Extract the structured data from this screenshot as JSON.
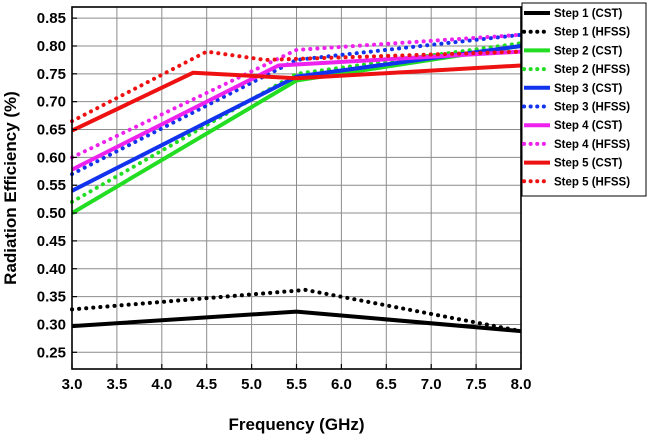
{
  "chart_data": {
    "type": "line",
    "title": "",
    "xlabel": "Frequency (GHz)",
    "ylabel": "Radiation Efficiency (%)",
    "xlim": [
      3.0,
      8.0
    ],
    "ylim": [
      0.22,
      0.87
    ],
    "xticks": [
      3.0,
      3.5,
      4.0,
      4.5,
      5.0,
      5.5,
      6.0,
      6.5,
      7.0,
      7.5,
      8.0
    ],
    "yticks": [
      0.25,
      0.3,
      0.35,
      0.4,
      0.45,
      0.5,
      0.55,
      0.6,
      0.65,
      0.7,
      0.75,
      0.8,
      0.85
    ],
    "xtick_labels": [
      "3.0",
      "3.5",
      "4.0",
      "4.5",
      "5.0",
      "5.5",
      "6.0",
      "6.5",
      "7.0",
      "7.5",
      "8.0"
    ],
    "ytick_labels": [
      "0.25",
      "0.30",
      "0.35",
      "0.40",
      "0.45",
      "0.50",
      "0.55",
      "0.60",
      "0.65",
      "0.70",
      "0.75",
      "0.80",
      "0.85"
    ],
    "grid": true,
    "legend_position": "top-right, outside plot",
    "series": [
      {
        "name": "Step 1 (CST)",
        "color": "#000000",
        "style": "solid",
        "x": [
          3.0,
          5.5,
          8.0
        ],
        "y": [
          0.297,
          0.323,
          0.288
        ]
      },
      {
        "name": "Step 1 (HFSS)",
        "color": "#000000",
        "style": "dotted",
        "x": [
          3.0,
          5.6,
          8.0
        ],
        "y": [
          0.327,
          0.362,
          0.288
        ]
      },
      {
        "name": "Step 2 (CST)",
        "color": "#22dd22",
        "style": "solid",
        "x": [
          3.0,
          5.5,
          8.0
        ],
        "y": [
          0.5,
          0.738,
          0.8
        ]
      },
      {
        "name": "Step 2 (HFSS)",
        "color": "#22dd22",
        "style": "dotted",
        "x": [
          3.0,
          5.5,
          8.0
        ],
        "y": [
          0.52,
          0.75,
          0.805
        ]
      },
      {
        "name": "Step 3 (CST)",
        "color": "#1133ee",
        "style": "solid",
        "x": [
          3.0,
          5.5,
          8.0
        ],
        "y": [
          0.54,
          0.745,
          0.8
        ]
      },
      {
        "name": "Step 3 (HFSS)",
        "color": "#1133ee",
        "style": "dotted",
        "x": [
          3.0,
          5.5,
          8.0
        ],
        "y": [
          0.57,
          0.775,
          0.82
        ]
      },
      {
        "name": "Step 4 (CST)",
        "color": "#ee22ee",
        "style": "solid",
        "x": [
          3.0,
          5.3,
          8.0
        ],
        "y": [
          0.578,
          0.765,
          0.79
        ]
      },
      {
        "name": "Step 4 (HFSS)",
        "color": "#ee22ee",
        "style": "dotted",
        "x": [
          3.0,
          5.5,
          8.0
        ],
        "y": [
          0.6,
          0.793,
          0.82
        ]
      },
      {
        "name": "Step 5 (CST)",
        "color": "#ee1111",
        "style": "solid",
        "x": [
          3.0,
          4.35,
          5.5,
          8.0
        ],
        "y": [
          0.648,
          0.752,
          0.742,
          0.765
        ]
      },
      {
        "name": "Step 5 (HFSS)",
        "color": "#ee1111",
        "style": "dotted",
        "x": [
          3.0,
          4.5,
          5.15,
          8.0
        ],
        "y": [
          0.665,
          0.79,
          0.775,
          0.79
        ]
      }
    ]
  }
}
